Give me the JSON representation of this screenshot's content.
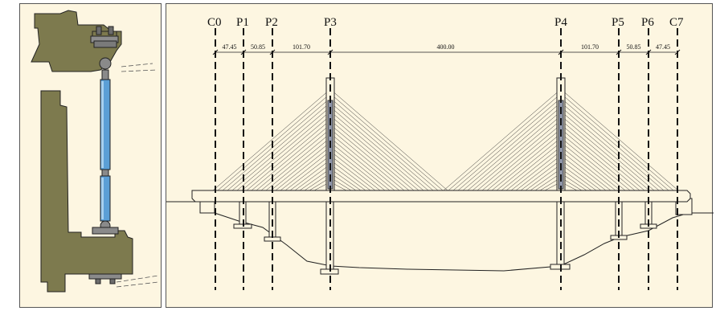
{
  "colors": {
    "panel_background": "#fdf6e1",
    "concrete": "#7d7a4e",
    "hanger": "#5b9fd6",
    "pylon_shading": "#8e95a8",
    "outline": "#222222"
  },
  "detail_panel": {
    "icons": [
      "deck-anchorage-icon",
      "cable-hanger-icon",
      "pier-anchorage-icon"
    ]
  },
  "elevation": {
    "piers": [
      {
        "id": "c0",
        "label": "C0"
      },
      {
        "id": "p1",
        "label": "P1"
      },
      {
        "id": "p2",
        "label": "P2"
      },
      {
        "id": "p3",
        "label": "P3"
      },
      {
        "id": "p4",
        "label": "P4"
      },
      {
        "id": "p5",
        "label": "P5"
      },
      {
        "id": "p6",
        "label": "P6"
      },
      {
        "id": "c7",
        "label": "C7"
      }
    ],
    "spans": [
      "47.45",
      "50.85",
      "101.70",
      "400.00",
      "101.70",
      "50.85",
      "47.45"
    ]
  }
}
